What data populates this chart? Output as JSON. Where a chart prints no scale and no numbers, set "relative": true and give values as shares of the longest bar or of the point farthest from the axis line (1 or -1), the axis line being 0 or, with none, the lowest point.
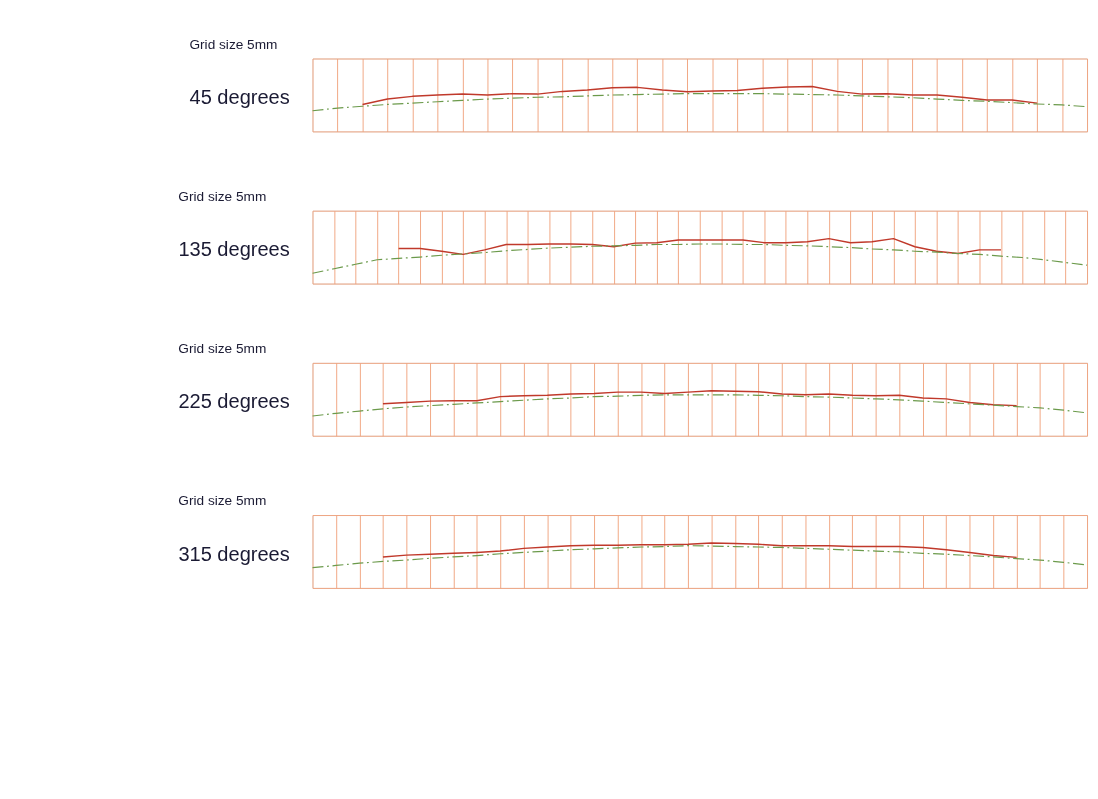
{
  "chart_data": [
    {
      "type": "line",
      "title": "Grid size 5mm",
      "ylabel": "45 degrees",
      "relative": true,
      "grid": true,
      "marker": "none",
      "categories": [
        null,
        null,
        null,
        null,
        null,
        null,
        null,
        null,
        null,
        null,
        null,
        null,
        null,
        null,
        null,
        null,
        null,
        null,
        null,
        null,
        null,
        null,
        null,
        null,
        null,
        null,
        null,
        null,
        null,
        null,
        null,
        null
      ],
      "series": [
        {
          "color": "#c0392b",
          "line_style": "solid",
          "values": [
            null,
            null,
            0.6,
            0.72,
            0.78,
            0.81,
            0.83,
            0.81,
            0.84,
            0.83,
            0.89,
            0.92,
            0.97,
            0.98,
            0.92,
            0.88,
            0.9,
            0.91,
            0.96,
            0.99,
            1,
            0.89,
            0.83,
            0.84,
            0.81,
            0.81,
            0.76,
            0.7,
            0.7,
            0.63,
            null,
            null
          ]
        },
        {
          "color": "#6b9a4b",
          "line_style": "dashed",
          "values": [
            0.46,
            0.52,
            0.56,
            0.6,
            0.63,
            0.66,
            0.69,
            0.72,
            0.74,
            0.76,
            0.77,
            0.79,
            0.81,
            0.82,
            0.83,
            0.84,
            0.84,
            0.84,
            0.84,
            0.83,
            0.82,
            0.81,
            0.79,
            0.77,
            0.75,
            0.72,
            0.69,
            0.67,
            0.64,
            0.61,
            0.59,
            0.55
          ]
        }
      ]
    },
    {
      "type": "line",
      "title": "Grid size 5mm",
      "ylabel": "135 degrees",
      "relative": true,
      "grid": true,
      "marker": "none",
      "categories": [
        null,
        null,
        null,
        null,
        null,
        null,
        null,
        null,
        null,
        null,
        null,
        null,
        null,
        null,
        null,
        null,
        null,
        null,
        null,
        null,
        null,
        null,
        null,
        null,
        null,
        null,
        null,
        null,
        null,
        null,
        null,
        null,
        null,
        null,
        null,
        null,
        null
      ],
      "series": [
        {
          "color": "#c0392b",
          "line_style": "solid",
          "values": [
            null,
            null,
            null,
            null,
            0.78,
            0.78,
            0.72,
            0.65,
            0.75,
            0.87,
            0.87,
            0.88,
            0.88,
            0.87,
            0.82,
            0.9,
            0.91,
            0.97,
            0.97,
            0.97,
            0.97,
            0.91,
            0.91,
            0.93,
            1,
            0.91,
            0.93,
            1,
            0.82,
            0.72,
            0.67,
            0.75,
            0.75,
            null,
            null,
            null,
            null
          ]
        },
        {
          "color": "#6b9a4b",
          "line_style": "dashed",
          "values": [
            0.23,
            0.33,
            0.43,
            0.53,
            0.56,
            0.59,
            0.63,
            0.66,
            0.69,
            0.73,
            0.76,
            0.79,
            0.81,
            0.83,
            0.84,
            0.85,
            0.87,
            0.87,
            0.88,
            0.88,
            0.87,
            0.87,
            0.85,
            0.84,
            0.82,
            0.8,
            0.77,
            0.75,
            0.72,
            0.7,
            0.67,
            0.65,
            0.61,
            0.58,
            0.53,
            0.47,
            0.41
          ]
        }
      ]
    },
    {
      "type": "line",
      "title": "Grid size 5mm",
      "ylabel": "225 degrees",
      "relative": true,
      "grid": true,
      "marker": "none",
      "categories": [
        null,
        null,
        null,
        null,
        null,
        null,
        null,
        null,
        null,
        null,
        null,
        null,
        null,
        null,
        null,
        null,
        null,
        null,
        null,
        null,
        null,
        null,
        null,
        null,
        null,
        null,
        null,
        null,
        null,
        null,
        null,
        null,
        null,
        null
      ],
      "series": [
        {
          "color": "#c0392b",
          "line_style": "solid",
          "values": [
            null,
            null,
            null,
            0.71,
            0.74,
            0.77,
            0.78,
            0.78,
            0.87,
            0.89,
            0.9,
            0.93,
            0.94,
            0.97,
            0.97,
            0.94,
            0.97,
            1,
            0.99,
            0.98,
            0.93,
            0.91,
            0.93,
            0.9,
            0.89,
            0.9,
            0.84,
            0.82,
            0.74,
            0.69,
            0.67,
            null,
            null,
            null
          ]
        },
        {
          "color": "#6b9a4b",
          "line_style": "dashed",
          "values": [
            0.44,
            0.5,
            0.55,
            0.6,
            0.64,
            0.67,
            0.7,
            0.73,
            0.76,
            0.79,
            0.82,
            0.84,
            0.87,
            0.88,
            0.9,
            0.91,
            0.91,
            0.91,
            0.91,
            0.9,
            0.89,
            0.87,
            0.86,
            0.84,
            0.82,
            0.8,
            0.77,
            0.74,
            0.71,
            0.68,
            0.65,
            0.62,
            0.57,
            0.51
          ]
        }
      ]
    },
    {
      "type": "line",
      "title": "Grid size 5mm",
      "ylabel": "315 degrees",
      "relative": true,
      "grid": true,
      "marker": "none",
      "categories": [
        null,
        null,
        null,
        null,
        null,
        null,
        null,
        null,
        null,
        null,
        null,
        null,
        null,
        null,
        null,
        null,
        null,
        null,
        null,
        null,
        null,
        null,
        null,
        null,
        null,
        null,
        null,
        null,
        null,
        null,
        null,
        null,
        null,
        null
      ],
      "series": [
        {
          "color": "#c0392b",
          "line_style": "solid",
          "values": [
            null,
            null,
            null,
            0.69,
            0.73,
            0.75,
            0.77,
            0.79,
            0.82,
            0.88,
            0.91,
            0.94,
            0.95,
            0.95,
            0.96,
            0.96,
            0.97,
            1,
            0.99,
            0.97,
            0.94,
            0.94,
            0.94,
            0.92,
            0.92,
            0.92,
            0.9,
            0.85,
            0.79,
            0.72,
            0.68,
            null,
            null,
            null
          ]
        },
        {
          "color": "#6b9a4b",
          "line_style": "dashed",
          "values": [
            0.45,
            0.5,
            0.55,
            0.59,
            0.62,
            0.66,
            0.69,
            0.72,
            0.76,
            0.79,
            0.82,
            0.85,
            0.87,
            0.89,
            0.91,
            0.92,
            0.94,
            0.93,
            0.92,
            0.91,
            0.9,
            0.88,
            0.86,
            0.84,
            0.82,
            0.8,
            0.77,
            0.75,
            0.72,
            0.69,
            0.65,
            0.62,
            0.57,
            0.51
          ]
        }
      ]
    }
  ]
}
